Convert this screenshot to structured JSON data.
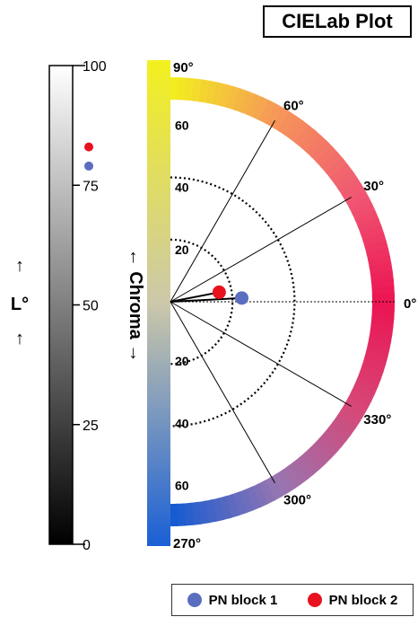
{
  "title": "CIELab Plot",
  "lightness_axis": {
    "label": "L°",
    "ticks": [
      {
        "value": 100,
        "label": "100"
      },
      {
        "value": 75,
        "label": "75"
      },
      {
        "value": 50,
        "label": "50"
      },
      {
        "value": 25,
        "label": "25"
      },
      {
        "value": 0,
        "label": "0"
      }
    ]
  },
  "chroma_axis": {
    "label": "← Chroma →",
    "rings": [
      20,
      40
    ],
    "max": 65,
    "upper_labels": [
      "20",
      "40",
      "60"
    ],
    "lower_labels": [
      "20",
      "40",
      "60"
    ]
  },
  "hue_labels": [
    "90°",
    "60°",
    "30°",
    "0°",
    "330°",
    "300°",
    "270°"
  ],
  "hue_angles": [
    90,
    60,
    30,
    0,
    -30,
    -60,
    -90
  ],
  "colors": {
    "block1": "#5b6dbf",
    "block2": "#e8121f"
  },
  "chart_data": {
    "type": "scatter",
    "title": "CIELab Plot",
    "series": [
      {
        "name": "PN block 1",
        "L": 79,
        "chroma": 23,
        "hue_deg": 3
      },
      {
        "name": "PN block 2",
        "L": 83,
        "chroma": 16,
        "hue_deg": 11
      }
    ],
    "chroma_range": [
      0,
      65
    ],
    "L_range": [
      0,
      100
    ]
  },
  "legend": {
    "items": [
      "PN block 1",
      "PN block 2"
    ]
  }
}
